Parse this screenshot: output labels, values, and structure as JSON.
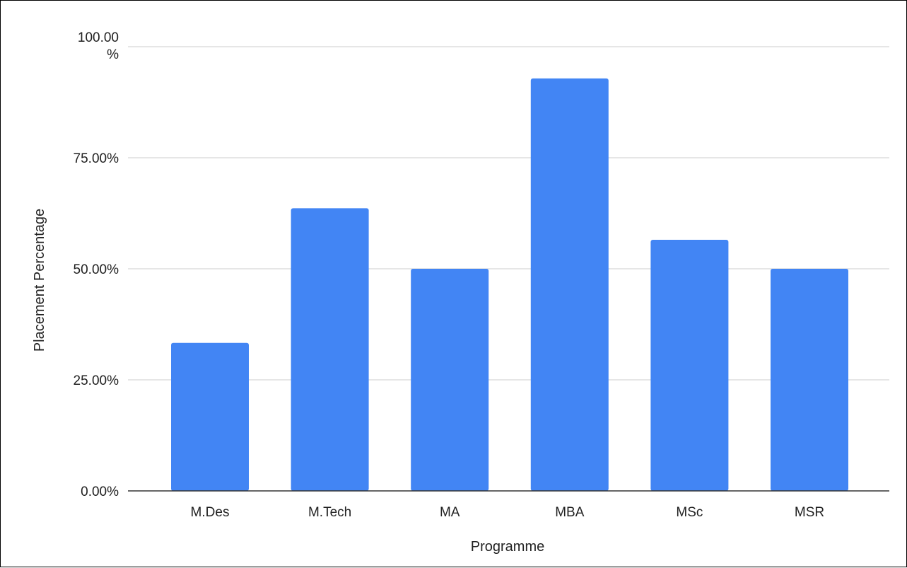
{
  "chart_data": {
    "type": "bar",
    "title": "",
    "xlabel": "Programme",
    "ylabel": "Placement Percentage",
    "categories": [
      "M.Des",
      "M.Tech",
      "MA",
      "MBA",
      "MSc",
      "MSR"
    ],
    "values": [
      33.33,
      63.64,
      50.0,
      92.86,
      56.52,
      50.0
    ],
    "ylim": [
      0,
      100
    ],
    "yticks": [
      0,
      25,
      50,
      75,
      100
    ],
    "ytick_labels": [
      "0.00%",
      "25.00%",
      "50.00%",
      "75.00%",
      "100.00 %"
    ],
    "grid": true,
    "legend": "none",
    "bar_color": "#4285f4",
    "grid_color": "#cccccc",
    "axis_color": "#333333"
  }
}
